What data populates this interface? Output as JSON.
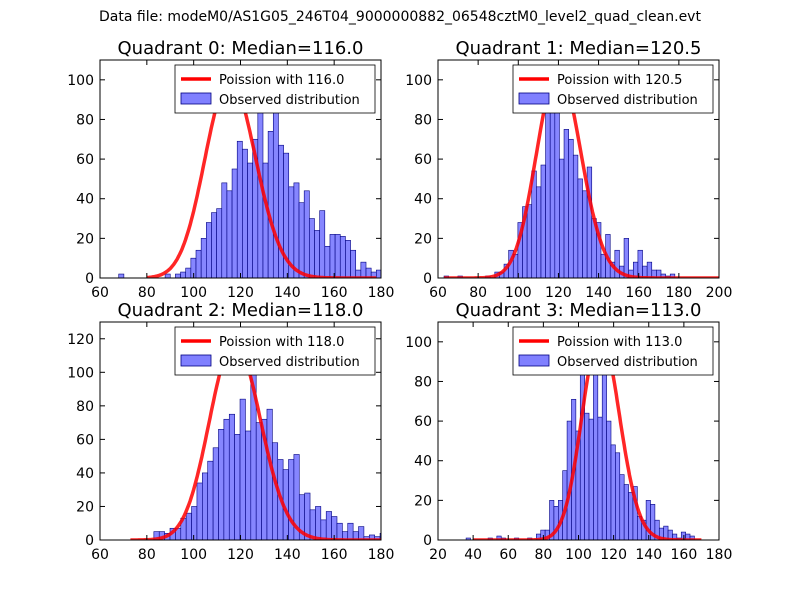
{
  "suptitle": "Data file: modeM0/AS1G05_246T04_9000000882_06548cztM0_level2_quad_clean.evt",
  "colors": {
    "bar_fill": "#8080ff",
    "bar_edge": "#000080",
    "curve": "#ff0000"
  },
  "chart_data": [
    {
      "type": "bar",
      "title": "Quadrant 0: Median=116.0",
      "xlim": [
        60,
        180
      ],
      "ylim": [
        0,
        110
      ],
      "xticks": [
        60,
        80,
        100,
        120,
        140,
        160,
        180
      ],
      "yticks": [
        0,
        20,
        40,
        60,
        80,
        100
      ],
      "legend": [
        "Poission with 116.0",
        "Observed distribution"
      ],
      "legend_position": "top-right",
      "bin_start": 68,
      "bin_width": 2.2,
      "values": [
        2,
        0,
        0,
        0,
        0,
        0,
        0,
        0,
        0,
        2,
        0,
        2,
        3,
        5,
        10,
        14,
        20,
        28,
        33,
        35,
        48,
        44,
        55,
        69,
        65,
        58,
        70,
        102,
        58,
        74,
        90,
        67,
        63,
        46,
        48,
        38,
        44,
        30,
        24,
        34,
        16,
        22,
        22,
        21,
        19,
        14,
        4,
        8,
        5,
        3,
        4,
        1,
        1,
        0
      ],
      "poisson_lambda": 116.0,
      "poisson_scale": 100,
      "poisson_x": [
        80,
        178
      ]
    },
    {
      "type": "bar",
      "title": "Quadrant 1: Median=120.5",
      "xlim": [
        60,
        200
      ],
      "ylim": [
        0,
        110
      ],
      "xticks": [
        60,
        80,
        100,
        120,
        140,
        160,
        180,
        200
      ],
      "yticks": [
        0,
        20,
        40,
        60,
        80,
        100
      ],
      "legend": [
        "Poission with 120.5",
        "Observed distribution"
      ],
      "legend_position": "top-right",
      "bin_start": 63,
      "bin_width": 2.3,
      "values": [
        1,
        0,
        0,
        1,
        0,
        0,
        0,
        0,
        0,
        1,
        0,
        3,
        3,
        7,
        14,
        12,
        28,
        36,
        37,
        54,
        46,
        57,
        85,
        90,
        105,
        60,
        75,
        70,
        62,
        50,
        44,
        56,
        30,
        28,
        12,
        22,
        8,
        14,
        6,
        20,
        4,
        8,
        14,
        6,
        8,
        4,
        4,
        2,
        1,
        2
      ],
      "poisson_lambda": 120.5,
      "poisson_scale": 105,
      "poisson_x": [
        63,
        200
      ]
    },
    {
      "type": "bar",
      "title": "Quadrant 2: Median=118.0",
      "xlim": [
        60,
        180
      ],
      "ylim": [
        0,
        130
      ],
      "xticks": [
        60,
        80,
        100,
        120,
        140,
        160,
        180
      ],
      "yticks": [
        0,
        20,
        40,
        60,
        80,
        100,
        120
      ],
      "legend": [
        "Poission with 118.0",
        "Observed distribution"
      ],
      "legend_position": "top-right",
      "bin_start": 83,
      "bin_width": 2.3,
      "values": [
        5,
        5,
        4,
        7,
        7,
        13,
        16,
        20,
        34,
        40,
        47,
        55,
        66,
        72,
        75,
        63,
        84,
        65,
        120,
        70,
        72,
        78,
        58,
        48,
        42,
        48,
        51,
        27,
        28,
        18,
        20,
        12,
        17,
        14,
        10,
        5,
        10,
        5,
        8,
        2,
        3,
        2,
        4,
        2,
        6,
        2,
        4
      ],
      "poisson_lambda": 118.0,
      "poisson_scale": 118,
      "poisson_x": [
        73,
        180
      ]
    },
    {
      "type": "bar",
      "title": "Quadrant 3: Median=113.0",
      "xlim": [
        20,
        180
      ],
      "ylim": [
        0,
        110
      ],
      "xticks": [
        20,
        40,
        60,
        80,
        100,
        120,
        140,
        160,
        180
      ],
      "yticks": [
        0,
        20,
        40,
        60,
        80,
        100
      ],
      "legend": [
        "Poission with 113.0",
        "Observed distribution"
      ],
      "legend_position": "top-right",
      "bin_start": 36,
      "bin_width": 2.5,
      "values": [
        1,
        0,
        0,
        0,
        0,
        1,
        0,
        2,
        1,
        0,
        0,
        1,
        0,
        0,
        1,
        0,
        3,
        5,
        5,
        20,
        17,
        20,
        35,
        60,
        71,
        55,
        87,
        64,
        61,
        92,
        62,
        102,
        60,
        48,
        44,
        33,
        28,
        24,
        27,
        12,
        10,
        20,
        18,
        10,
        6,
        7,
        5,
        3,
        1,
        4,
        3,
        2
      ],
      "poisson_lambda": 113.0,
      "poisson_scale": 104,
      "poisson_x": [
        40,
        170
      ]
    }
  ]
}
